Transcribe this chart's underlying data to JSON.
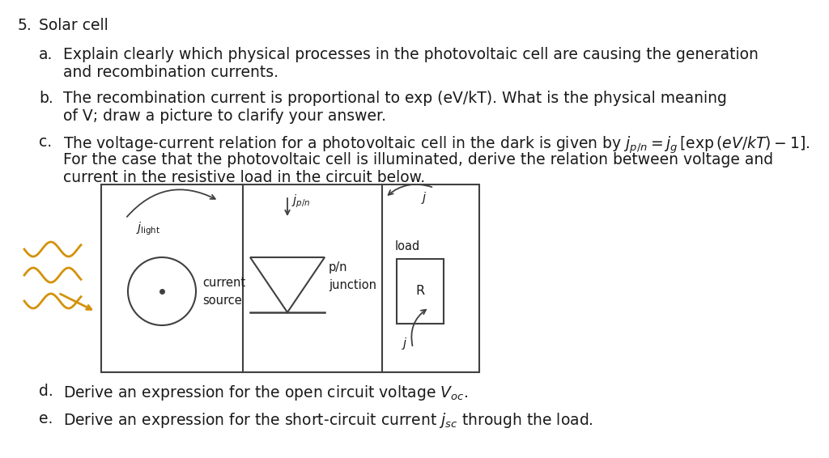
{
  "bg_color": "#ffffff",
  "text_color": "#1a1a1a",
  "fig_width": 10.24,
  "fig_height": 5.66,
  "squiggle_color": "#D4920A",
  "circuit_line_color": "#404040",
  "font_size": 13.5,
  "small_font_size": 10.5,
  "title_num": "5.",
  "title_text": "Solar cell",
  "item_a_label": "a.",
  "item_a_line1": "Explain clearly which physical processes in the photovoltaic cell are causing the generation",
  "item_a_line2": "and recombination currents.",
  "item_b_label": "b.",
  "item_b_line1": "The recombination current is proportional to exp (eV/kT). What is the physical meaning",
  "item_b_line2": "of V; draw a picture to clarify your answer.",
  "item_c_label": "c.",
  "item_c_line1": "The voltage-current relation for a photovoltaic cell in the dark is given by $j_{p/n} = j_g\\,[\\mathrm{exp}\\,(eV/kT) - 1]$.",
  "item_c_line2": "For the case that the photovoltaic cell is illuminated, derive the relation between voltage and",
  "item_c_line3": "current in the resistive load in the circuit below.",
  "item_d_label": "d.",
  "item_d_text": "Derive an expression for the open circuit voltage $V_{oc}$.",
  "item_e_label": "e.",
  "item_e_text": "Derive an expression for the short-circuit current $j_{sc}$ through the load.",
  "label_jlight": "$j_{\\mathrm{light}}$",
  "label_jpn": "$j_{p/n}$",
  "label_j_top": "$j$",
  "label_j_bot": "$j$",
  "label_current_source1": "current",
  "label_current_source2": "source",
  "label_pn1": "p/n",
  "label_pn2": "junction",
  "label_load": "load",
  "label_R": "R"
}
